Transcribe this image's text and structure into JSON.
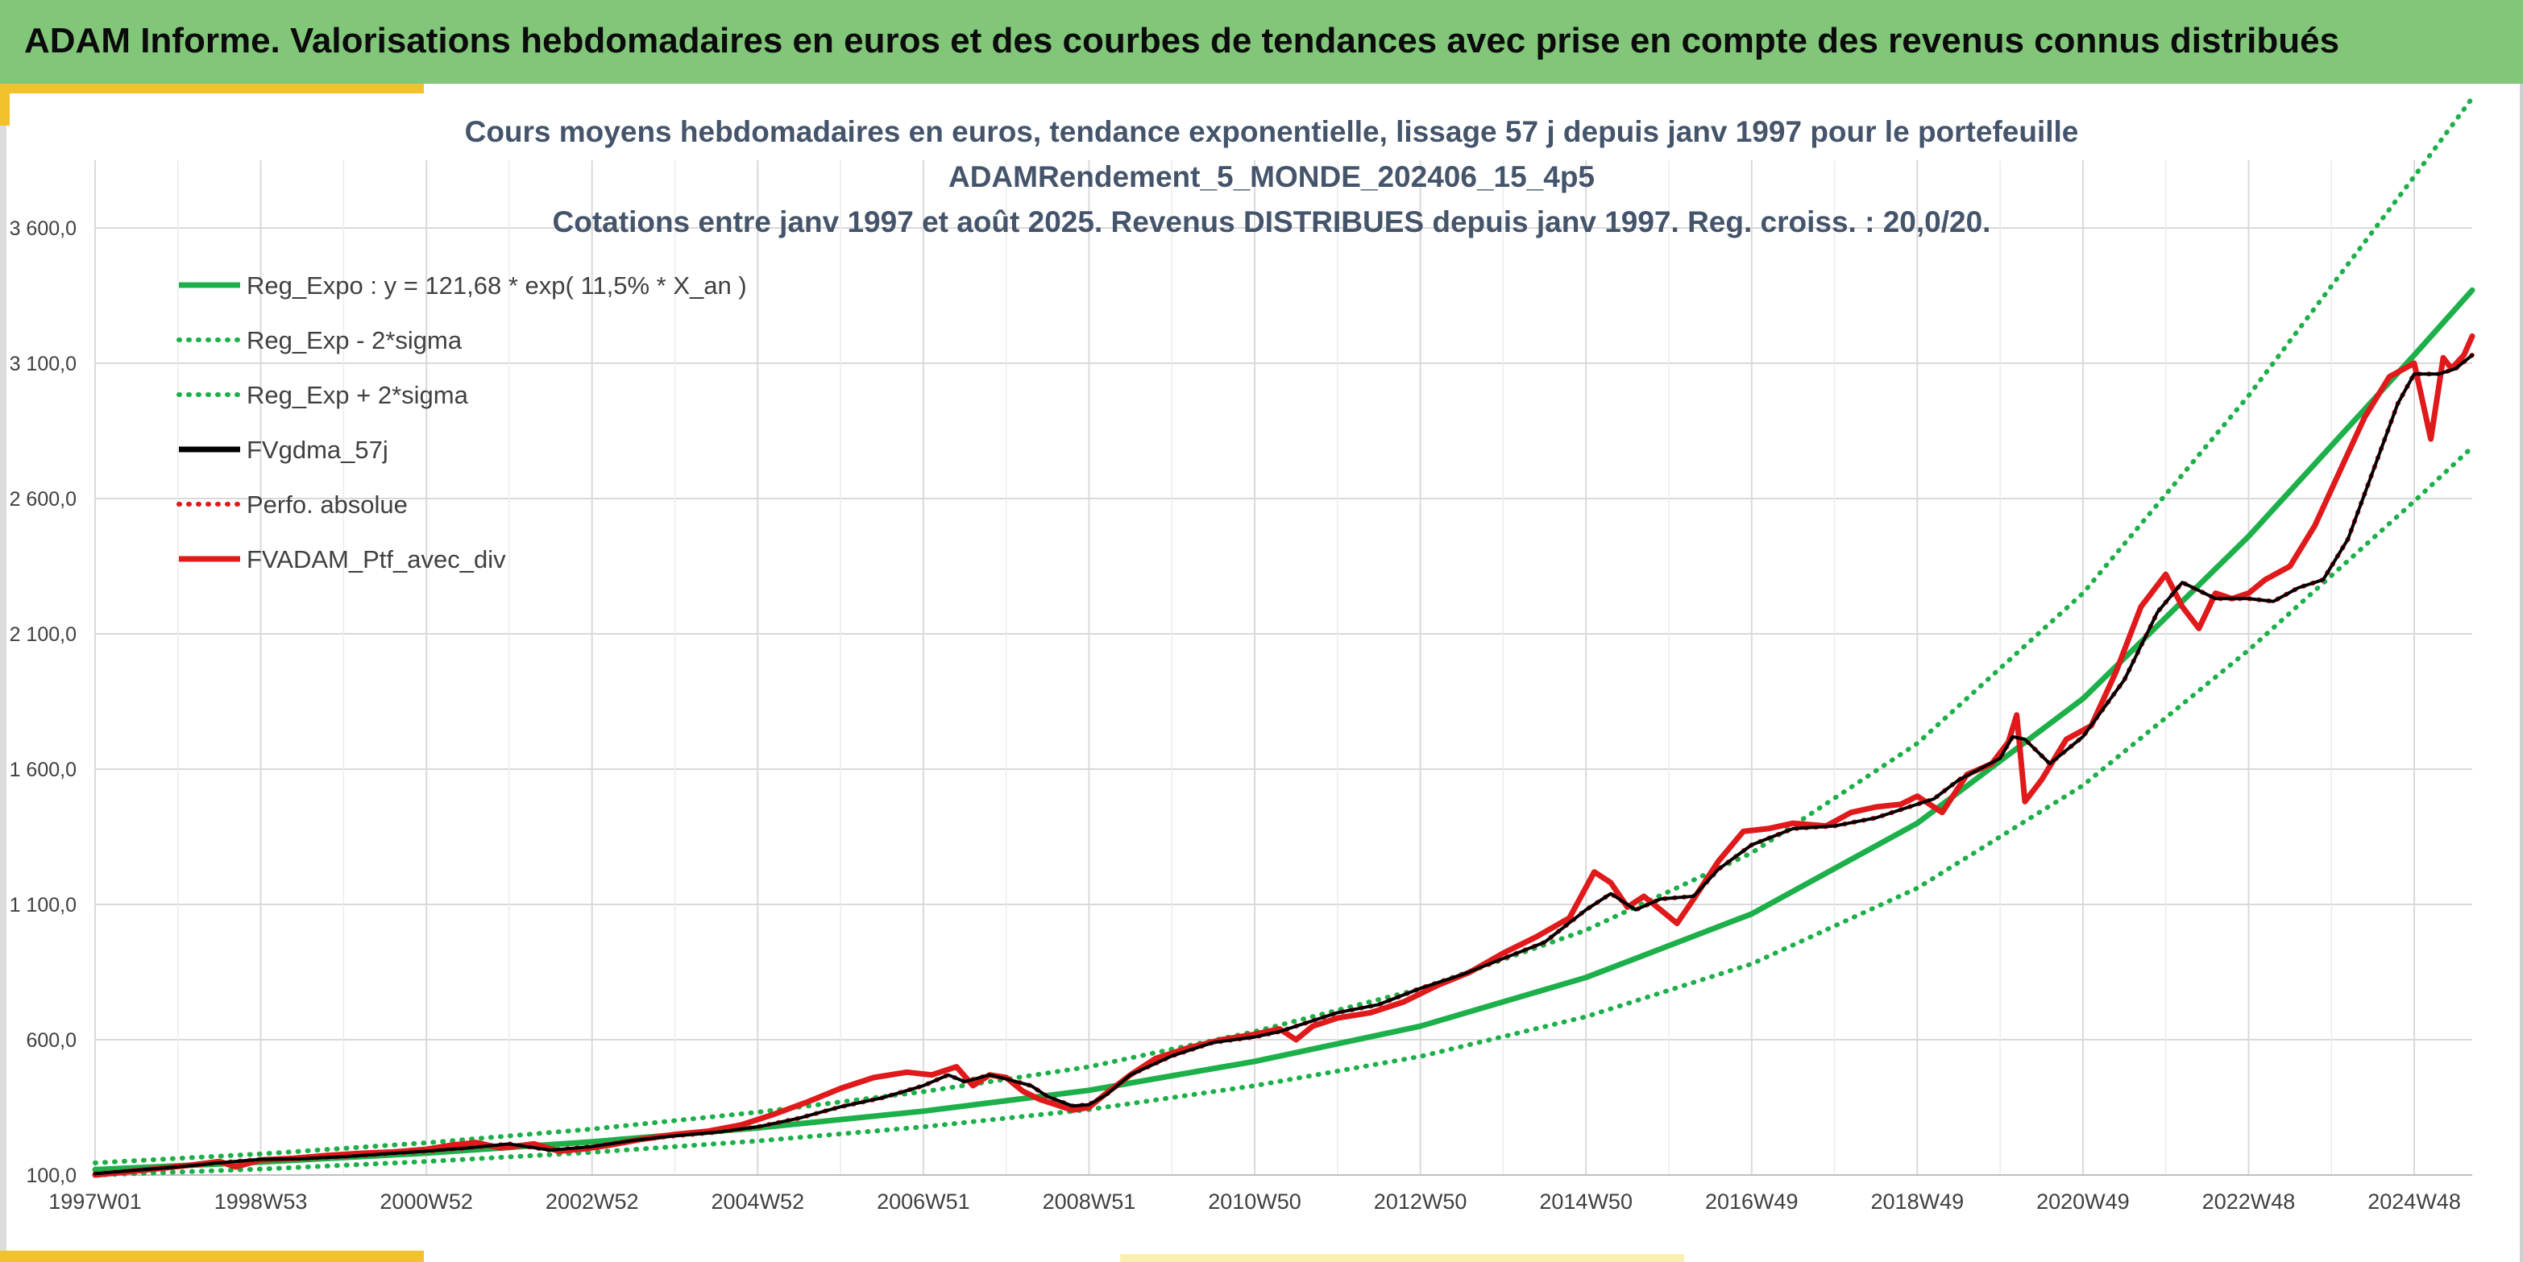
{
  "banner": {
    "title": "ADAM Informe. Valorisations hebdomadaires en euros et des courbes de tendances avec prise en compte des revenus connus distribués"
  },
  "chart_data": {
    "type": "line",
    "title": [
      "Cours moyens hebdomadaires en euros, tendance exponentielle, lissage 57 j depuis janv 1997 pour le portefeuille",
      "ADAMRendement_5_MONDE_202406_15_4p5",
      "Cotations entre janv 1997 et août 2025. Revenus DISTRIBUES depuis janv 1997. Reg. croiss. : 20,0/20."
    ],
    "xlabel": "",
    "ylabel": "",
    "ylim": [
      100,
      3850
    ],
    "xlim": [
      1997.0,
      2025.7
    ],
    "grid": true,
    "y_ticks": [
      {
        "value": 100,
        "label": "100,0"
      },
      {
        "value": 600,
        "label": "600,0"
      },
      {
        "value": 1100,
        "label": "1 100,0"
      },
      {
        "value": 1600,
        "label": "1 600,0"
      },
      {
        "value": 2100,
        "label": "2 100,0"
      },
      {
        "value": 2600,
        "label": "2 600,0"
      },
      {
        "value": 3100,
        "label": "3 100,0"
      },
      {
        "value": 3600,
        "label": "3 600,0"
      }
    ],
    "x_ticks": [
      {
        "value": 1997.0,
        "label": "1997W01"
      },
      {
        "value": 1999.0,
        "label": "1998W53"
      },
      {
        "value": 2001.0,
        "label": "2000W52"
      },
      {
        "value": 2003.0,
        "label": "2002W52"
      },
      {
        "value": 2005.0,
        "label": "2004W52"
      },
      {
        "value": 2007.0,
        "label": "2006W51"
      },
      {
        "value": 2009.0,
        "label": "2008W51"
      },
      {
        "value": 2011.0,
        "label": "2010W50"
      },
      {
        "value": 2013.0,
        "label": "2012W50"
      },
      {
        "value": 2015.0,
        "label": "2014W50"
      },
      {
        "value": 2017.0,
        "label": "2016W49"
      },
      {
        "value": 2019.0,
        "label": "2018W49"
      },
      {
        "value": 2021.0,
        "label": "2020W49"
      },
      {
        "value": 2023.0,
        "label": "2022W48"
      },
      {
        "value": 2025.0,
        "label": "2024W48"
      }
    ],
    "legend_position": "top-left",
    "series": [
      {
        "name": "Reg_Expo : y = 121,68 * exp( 11,5% *  X_an )",
        "color": "#1db04a",
        "style": "solid",
        "x": [
          1997.0,
          1999.0,
          2001.0,
          2003.0,
          2005.0,
          2007.0,
          2009.0,
          2011.0,
          2013.0,
          2015.0,
          2017.0,
          2019.0,
          2021.0,
          2023.0,
          2025.0,
          2025.7
        ],
        "y": [
          120,
          148,
          181,
          223,
          274,
          336,
          413,
          520,
          650,
          830,
          1065,
          1400,
          1860,
          2460,
          3130,
          3370
        ]
      },
      {
        "name": "Reg_Exp - 2*sigma",
        "color": "#1db04a",
        "style": "dotted",
        "x": [
          1997.0,
          1999.0,
          2001.0,
          2003.0,
          2005.0,
          2007.0,
          2009.0,
          2011.0,
          2013.0,
          2015.0,
          2017.0,
          2019.0,
          2021.0,
          2023.0,
          2025.0,
          2025.7
        ],
        "y": [
          100,
          122,
          150,
          184,
          226,
          278,
          342,
          430,
          538,
          685,
          880,
          1160,
          1540,
          2040,
          2590,
          2790
        ]
      },
      {
        "name": "Reg_Exp + 2*sigma",
        "color": "#1db04a",
        "style": "dotted",
        "x": [
          1997.0,
          1999.0,
          2001.0,
          2003.0,
          2005.0,
          2007.0,
          2009.0,
          2011.0,
          2013.0,
          2015.0,
          2017.0,
          2019.0,
          2021.0,
          2023.0,
          2025.0,
          2025.7
        ],
        "y": [
          145,
          178,
          219,
          270,
          332,
          408,
          500,
          630,
          788,
          1005,
          1290,
          1695,
          2250,
          2980,
          3790,
          4080
        ]
      },
      {
        "name": "FVgdma_57j",
        "color": "#000000",
        "style": "solid",
        "x": [
          1997.0,
          1997.5,
          1998.0,
          1998.5,
          1999.0,
          1999.5,
          2000.0,
          2000.5,
          2001.0,
          2001.5,
          2002.0,
          2002.5,
          2003.0,
          2003.5,
          2004.0,
          2004.5,
          2005.0,
          2005.5,
          2006.0,
          2006.5,
          2007.0,
          2007.3,
          2007.5,
          2007.8,
          2008.0,
          2008.3,
          2008.5,
          2008.8,
          2009.0,
          2009.2,
          2009.5,
          2010.0,
          2010.5,
          2011.0,
          2011.3,
          2011.5,
          2012.0,
          2012.5,
          2013.0,
          2013.5,
          2014.0,
          2014.5,
          2015.0,
          2015.3,
          2015.6,
          2015.9,
          2016.3,
          2016.6,
          2017.0,
          2017.5,
          2018.0,
          2018.5,
          2018.9,
          2019.2,
          2019.5,
          2020.0,
          2020.15,
          2020.3,
          2020.6,
          2021.0,
          2021.5,
          2021.9,
          2022.2,
          2022.6,
          2023.0,
          2023.3,
          2023.6,
          2023.9,
          2024.2,
          2024.5,
          2024.8,
          2025.0,
          2025.3,
          2025.5,
          2025.7
        ],
        "y": [
          105,
          118,
          130,
          145,
          158,
          160,
          168,
          178,
          188,
          200,
          215,
          192,
          205,
          228,
          245,
          258,
          278,
          310,
          352,
          385,
          430,
          470,
          445,
          470,
          455,
          430,
          390,
          355,
          360,
          395,
          470,
          540,
          590,
          610,
          630,
          650,
          700,
          730,
          790,
          840,
          900,
          960,
          1080,
          1140,
          1080,
          1120,
          1130,
          1230,
          1320,
          1380,
          1390,
          1420,
          1460,
          1490,
          1560,
          1640,
          1720,
          1710,
          1620,
          1720,
          1930,
          2180,
          2290,
          2230,
          2230,
          2220,
          2270,
          2300,
          2450,
          2700,
          2950,
          3060,
          3060,
          3080,
          3130
        ]
      },
      {
        "name": "Perfo. absolue",
        "color": "#e0191b",
        "style": "dotted",
        "x": [
          1997.0,
          1997.5,
          1998.0,
          1998.5,
          1999.0,
          1999.5,
          2000.0,
          2000.5,
          2001.0,
          2001.5,
          2002.0,
          2002.5,
          2003.0,
          2003.5,
          2004.0,
          2004.5,
          2005.0,
          2005.5,
          2006.0,
          2006.5,
          2007.0,
          2007.3,
          2007.5,
          2007.8,
          2008.0,
          2008.3,
          2008.5,
          2008.8,
          2009.0,
          2009.2,
          2009.5,
          2010.0,
          2010.5,
          2011.0,
          2011.3,
          2011.5,
          2012.0,
          2012.5,
          2013.0,
          2013.5,
          2014.0,
          2014.5,
          2015.0,
          2015.3,
          2015.6,
          2015.9,
          2016.3,
          2016.6,
          2017.0,
          2017.5,
          2018.0,
          2018.5,
          2018.9,
          2019.2,
          2019.5,
          2020.0,
          2020.15,
          2020.3,
          2020.6,
          2021.0,
          2021.5,
          2021.9,
          2022.2,
          2022.6,
          2023.0,
          2023.3,
          2023.6,
          2023.9,
          2024.2,
          2024.5,
          2024.8,
          2025.0,
          2025.3,
          2025.5,
          2025.7
        ],
        "y": [
          105,
          118,
          130,
          145,
          158,
          160,
          168,
          178,
          188,
          200,
          215,
          192,
          205,
          228,
          245,
          258,
          278,
          310,
          352,
          385,
          430,
          470,
          445,
          470,
          455,
          430,
          390,
          355,
          360,
          395,
          470,
          540,
          590,
          610,
          630,
          650,
          700,
          730,
          790,
          840,
          900,
          960,
          1080,
          1140,
          1080,
          1120,
          1130,
          1230,
          1320,
          1380,
          1390,
          1420,
          1460,
          1490,
          1560,
          1640,
          1720,
          1710,
          1620,
          1720,
          1930,
          2180,
          2290,
          2230,
          2230,
          2220,
          2270,
          2300,
          2450,
          2700,
          2950,
          3060,
          3060,
          3080,
          3130
        ]
      },
      {
        "name": "FVADAM_Ptf_avec_div",
        "color": "#e0191b",
        "style": "solid",
        "x": [
          1997.0,
          1997.4,
          1997.8,
          1998.2,
          1998.5,
          1998.7,
          1999.0,
          1999.4,
          1999.8,
          2000.2,
          2000.6,
          2001.0,
          2001.3,
          2001.6,
          2001.9,
          2002.3,
          2002.6,
          2002.9,
          2003.2,
          2003.6,
          2004.0,
          2004.4,
          2004.8,
          2005.2,
          2005.6,
          2006.0,
          2006.4,
          2006.8,
          2007.1,
          2007.4,
          2007.6,
          2007.8,
          2008.0,
          2008.2,
          2008.4,
          2008.6,
          2008.8,
          2009.0,
          2009.2,
          2009.5,
          2009.8,
          2010.2,
          2010.6,
          2011.0,
          2011.3,
          2011.5,
          2011.7,
          2012.0,
          2012.4,
          2012.8,
          2013.2,
          2013.6,
          2014.0,
          2014.4,
          2014.8,
          2015.1,
          2015.3,
          2015.5,
          2015.7,
          2015.9,
          2016.1,
          2016.3,
          2016.6,
          2016.9,
          2017.2,
          2017.5,
          2017.9,
          2018.2,
          2018.5,
          2018.8,
          2019.0,
          2019.3,
          2019.6,
          2019.9,
          2020.1,
          2020.2,
          2020.3,
          2020.5,
          2020.8,
          2021.1,
          2021.4,
          2021.7,
          2022.0,
          2022.2,
          2022.4,
          2022.6,
          2022.8,
          2023.0,
          2023.2,
          2023.5,
          2023.8,
          2024.1,
          2024.4,
          2024.7,
          2025.0,
          2025.2,
          2025.35,
          2025.45,
          2025.6,
          2025.7
        ],
        "y": [
          100,
          112,
          125,
          138,
          150,
          130,
          156,
          162,
          172,
          180,
          185,
          195,
          210,
          220,
          200,
          215,
          188,
          196,
          210,
          232,
          250,
          262,
          285,
          325,
          370,
          420,
          460,
          480,
          470,
          500,
          430,
          470,
          460,
          410,
          380,
          360,
          340,
          350,
          400,
          470,
          530,
          570,
          600,
          620,
          640,
          600,
          650,
          680,
          700,
          740,
          800,
          850,
          920,
          980,
          1050,
          1220,
          1180,
          1090,
          1130,
          1080,
          1030,
          1120,
          1260,
          1370,
          1380,
          1400,
          1390,
          1440,
          1460,
          1470,
          1500,
          1440,
          1580,
          1620,
          1700,
          1800,
          1480,
          1560,
          1710,
          1760,
          1960,
          2200,
          2320,
          2200,
          2120,
          2250,
          2230,
          2250,
          2300,
          2350,
          2500,
          2700,
          2900,
          3050,
          3100,
          2820,
          3120,
          3080,
          3130,
          3200
        ]
      }
    ]
  }
}
